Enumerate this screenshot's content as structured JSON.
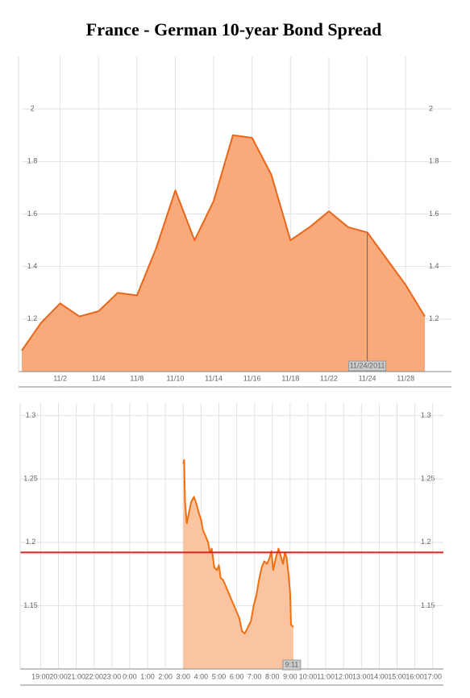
{
  "title": "France - German 10-year Bond Spread",
  "chart_data": [
    {
      "type": "area",
      "categories": [
        null,
        null,
        "11/2",
        null,
        "11/4",
        null,
        "11/8",
        null,
        "11/10",
        null,
        "11/14",
        null,
        "11/16",
        null,
        "11/18",
        null,
        "11/22",
        null,
        "11/24",
        null,
        "11/28",
        null
      ],
      "values": [
        1.08,
        1.185,
        1.26,
        1.21,
        1.23,
        1.3,
        1.29,
        1.47,
        1.69,
        1.5,
        1.65,
        1.9,
        1.89,
        1.75,
        1.5,
        1.55,
        1.61,
        1.55,
        1.53,
        1.43,
        1.33,
        1.21
      ],
      "color": "#e8671c",
      "fill_color": "#f9aa7a",
      "ylim": [
        1.0,
        2.2
      ],
      "yticks": [
        1.2,
        1.4,
        1.6,
        1.8,
        2
      ],
      "grid": true,
      "annotation": "11/24/2011"
    },
    {
      "type": "area",
      "x": [
        8.0,
        8.05,
        8.1,
        8.2,
        8.3,
        8.45,
        8.6,
        8.75,
        8.9,
        9.0,
        9.1,
        9.25,
        9.4,
        9.5,
        9.6,
        9.75,
        9.9,
        10.0,
        10.1,
        10.25,
        10.4,
        10.55,
        10.7,
        10.85,
        11.0,
        11.15,
        11.3,
        11.45,
        11.6,
        11.8,
        11.95,
        12.1,
        12.25,
        12.4,
        12.55,
        12.7,
        12.85,
        12.95,
        13.05,
        13.2,
        13.35,
        13.5,
        13.6,
        13.7,
        13.8,
        13.9,
        14.0,
        14.05,
        14.18
      ],
      "values": [
        1.262,
        1.265,
        1.232,
        1.215,
        1.222,
        1.232,
        1.236,
        1.23,
        1.222,
        1.218,
        1.21,
        1.205,
        1.2,
        1.192,
        1.195,
        1.18,
        1.178,
        1.182,
        1.172,
        1.17,
        1.165,
        1.16,
        1.155,
        1.15,
        1.145,
        1.14,
        1.13,
        1.128,
        1.132,
        1.138,
        1.15,
        1.158,
        1.17,
        1.18,
        1.185,
        1.183,
        1.188,
        1.193,
        1.178,
        1.188,
        1.195,
        1.188,
        1.183,
        1.192,
        1.188,
        1.176,
        1.16,
        1.135,
        1.133
      ],
      "color": "#f07010",
      "fill_color": "#fbc4a0",
      "xlim": [
        -1.15,
        22.6
      ],
      "xticks": [
        {
          "value": 0,
          "label": "19:00"
        },
        {
          "value": 1,
          "label": "20:00"
        },
        {
          "value": 2,
          "label": "21:00"
        },
        {
          "value": 3,
          "label": "22:00"
        },
        {
          "value": 4,
          "label": "23:00"
        },
        {
          "value": 5,
          "label": "0:00"
        },
        {
          "value": 6,
          "label": "1:00"
        },
        {
          "value": 7,
          "label": "2:00"
        },
        {
          "value": 8,
          "label": "3:00"
        },
        {
          "value": 9,
          "label": "4:00"
        },
        {
          "value": 10,
          "label": "5:00"
        },
        {
          "value": 11,
          "label": "6:00"
        },
        {
          "value": 12,
          "label": "7:00"
        },
        {
          "value": 13,
          "label": "8:00"
        },
        {
          "value": 14,
          "label": "9:00"
        },
        {
          "value": 15,
          "label": "10:00"
        },
        {
          "value": 16,
          "label": "11:00"
        },
        {
          "value": 17,
          "label": "12:00"
        },
        {
          "value": 18,
          "label": "13:00"
        },
        {
          "value": 19,
          "label": "14:00"
        },
        {
          "value": 20,
          "label": "15:00"
        },
        {
          "value": 21,
          "label": "16:00"
        },
        {
          "value": 22,
          "label": "17:00"
        }
      ],
      "ylim": [
        1.1,
        1.31
      ],
      "yticks": [
        1.15,
        1.2,
        1.25,
        1.3
      ],
      "grid": true,
      "reference_line": {
        "value": 1.192,
        "color": "#dd2222"
      },
      "annotation": "9:11"
    }
  ]
}
